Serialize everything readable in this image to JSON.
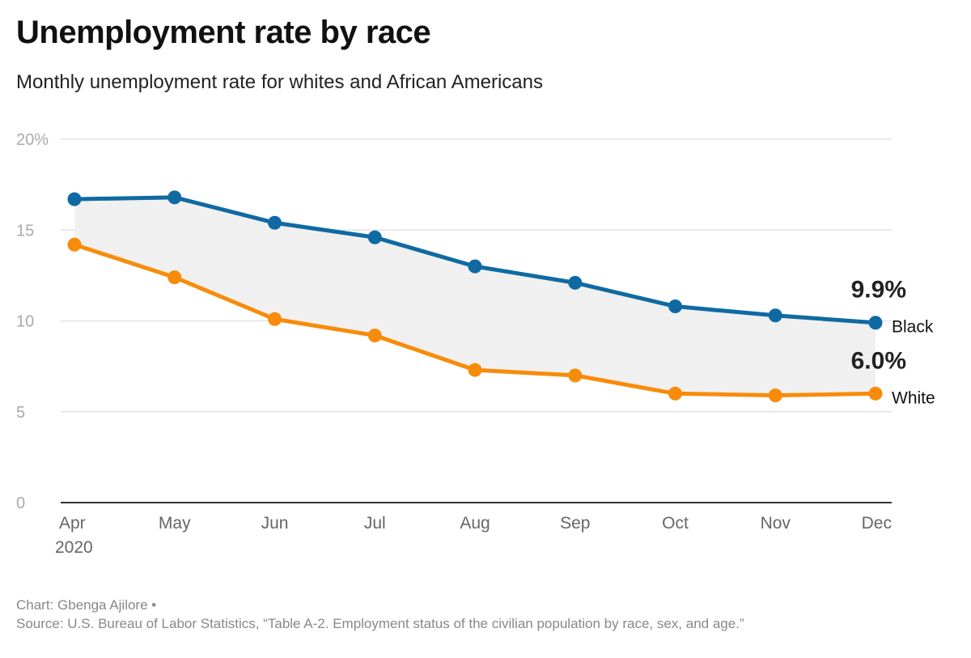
{
  "chart_data": {
    "type": "line",
    "title": "Unemployment rate by race",
    "subtitle": "Monthly unemployment rate for whites and African Americans",
    "categories": [
      "Apr",
      "May",
      "Jun",
      "Jul",
      "Aug",
      "Sep",
      "Oct",
      "Nov",
      "Dec"
    ],
    "category_sublabel": "2020",
    "series": [
      {
        "name": "Black",
        "values": [
          16.7,
          16.8,
          15.4,
          14.6,
          13.0,
          12.1,
          10.8,
          10.3,
          9.9
        ],
        "color": "#0f6aa3",
        "end_label": "9.9%"
      },
      {
        "name": "White",
        "values": [
          14.2,
          12.4,
          10.1,
          9.2,
          7.3,
          7.0,
          6.0,
          5.9,
          6.0
        ],
        "color": "#f78c0a",
        "end_label": "6.0%"
      }
    ],
    "y_ticks": [
      "20%",
      "15",
      "10",
      "5",
      "0"
    ],
    "y_tick_values": [
      20,
      15,
      10,
      5,
      0
    ],
    "ylim": [
      0,
      20
    ],
    "grid": true,
    "fill_between": true,
    "fill_color": "#f0f0f0",
    "xlabel": "",
    "ylabel": ""
  },
  "footer": {
    "credit": "Chart: Gbenga Ajilore •",
    "source": "Source: U.S. Bureau of Labor Statistics, “Table A-2. Employment status of the civilian population by race, sex, and age.”"
  }
}
